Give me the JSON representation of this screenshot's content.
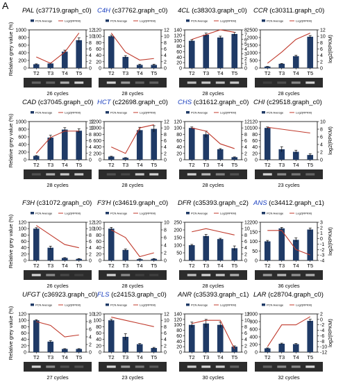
{
  "figure": {
    "panel_letter": "A",
    "y_left_label": "Relative grey value (%)",
    "y_right_label": "log2(RPKM)",
    "legend_bar": "PCN Average",
    "legend_line": "Log2(RPKM)",
    "colors": {
      "bar": "#1f3a66",
      "line": "#c0392b",
      "blue_title": "#1a3fbf",
      "gel_bg": "#2c2c2c",
      "band": "#e8e8e8"
    }
  },
  "chart_data": [
    {
      "type": "bar",
      "gene": "PAL",
      "id": "(c37719.graph_c0)",
      "gene_color": "black",
      "categories": [
        "T2",
        "T3",
        "T4",
        "T5"
      ],
      "left_ticks": [
        0,
        200,
        400,
        600,
        800,
        1000
      ],
      "ylim": [
        0,
        1000
      ],
      "right_ticks": [
        0,
        2,
        4,
        6,
        8,
        10,
        12
      ],
      "ylim_right": [
        0,
        12
      ],
      "series": [
        {
          "name": "PCN Average",
          "values": [
            100,
            120,
            430,
            730
          ],
          "errors": [
            10,
            15,
            40,
            60
          ]
        },
        {
          "name": "Log2(RPKM)",
          "values": [
            3.5,
            1.5,
            5,
            11
          ]
        }
      ],
      "gel_bands": [
        0.3,
        0.3,
        0.7,
        0.9
      ],
      "cycles": "26 cycles"
    },
    {
      "type": "bar",
      "gene": "C4H",
      "id": "(c37762.graph_c0)",
      "gene_color": "blue",
      "categories": [
        "T2",
        "T3",
        "T4",
        "T5"
      ],
      "left_ticks": [
        0,
        20,
        40,
        60,
        80,
        100,
        120
      ],
      "ylim": [
        0,
        120
      ],
      "right_ticks": [
        0,
        2,
        4,
        6,
        8,
        10,
        12
      ],
      "ylim_right": [
        0,
        12
      ],
      "series": [
        {
          "name": "PCN Average",
          "values": [
            100,
            35,
            10,
            10
          ],
          "errors": [
            3,
            4,
            2,
            2
          ]
        },
        {
          "name": "Log2(RPKM)",
          "values": [
            11,
            5,
            2.5,
            3
          ]
        }
      ],
      "gel_bands": [
        0.9,
        0.6,
        0.3,
        0.3
      ],
      "cycles": "28 cycles"
    },
    {
      "type": "bar",
      "gene": "4CL",
      "id": "(c38303.graph_c0)",
      "gene_color": "black",
      "categories": [
        "T2",
        "T3",
        "T4",
        "T5"
      ],
      "left_ticks": [
        0,
        20,
        40,
        60,
        80,
        100,
        120,
        140
      ],
      "ylim": [
        0,
        140
      ],
      "right_ticks": [
        0,
        1,
        2,
        3,
        4,
        5,
        6,
        7,
        8
      ],
      "ylim_right": [
        0,
        8
      ],
      "series": [
        {
          "name": "PCN Average",
          "values": [
            100,
            122,
            112,
            125
          ],
          "errors": [
            4,
            6,
            5,
            6
          ]
        },
        {
          "name": "Log2(RPKM)",
          "values": [
            6,
            7,
            8,
            7.5
          ]
        }
      ],
      "gel_bands": [
        0.8,
        0.85,
        0.8,
        0.85
      ],
      "cycles": "28 cycles"
    },
    {
      "type": "bar",
      "gene": "CCR",
      "id": "(c30311.graph_c0)",
      "gene_color": "black",
      "categories": [
        "T2",
        "T3",
        "T4",
        "T5"
      ],
      "left_ticks": [
        0,
        500,
        1000,
        1500,
        2000,
        2500
      ],
      "ylim": [
        0,
        2500
      ],
      "right_ticks": [
        0,
        2,
        4,
        6,
        8,
        10,
        12
      ],
      "ylim_right": [
        0,
        12
      ],
      "series": [
        {
          "name": "PCN Average",
          "values": [
            100,
            280,
            780,
            2050
          ],
          "errors": [
            10,
            20,
            60,
            80
          ]
        },
        {
          "name": "Log2(RPKM)",
          "values": [
            1.5,
            5,
            9,
            11
          ]
        }
      ],
      "gel_bands": [
        0.1,
        0.2,
        0.5,
        0.9
      ],
      "cycles": "28 cycles"
    },
    {
      "type": "bar",
      "gene": "CAD",
      "id": "(c37045.graph_c0)",
      "gene_color": "black",
      "categories": [
        "T2",
        "T3",
        "T4",
        "T5"
      ],
      "left_ticks": [
        0,
        200,
        400,
        600,
        800,
        1000
      ],
      "ylim": [
        0,
        1000
      ],
      "right_ticks": [
        0,
        2,
        4,
        6,
        8,
        10,
        12
      ],
      "ylim_right": [
        0,
        12
      ],
      "series": [
        {
          "name": "PCN Average",
          "values": [
            100,
            580,
            790,
            760
          ],
          "errors": [
            10,
            60,
            50,
            50
          ]
        },
        {
          "name": "Log2(RPKM)",
          "values": [
            2,
            7,
            9,
            9
          ]
        }
      ],
      "gel_bands": [
        0.2,
        0.7,
        0.85,
        0.85
      ],
      "cycles": "28 cycles"
    },
    {
      "type": "bar",
      "gene": "HCT",
      "id": "(c22698.graph_c0)",
      "gene_color": "blue",
      "categories": [
        "T2",
        "T3",
        "T4",
        "T5"
      ],
      "left_ticks": [
        0,
        200,
        400,
        600,
        800,
        1000,
        1200
      ],
      "ylim": [
        0,
        1200
      ],
      "right_ticks": [
        0,
        2,
        4,
        6,
        8,
        10,
        12
      ],
      "ylim_right": [
        0,
        12
      ],
      "series": [
        {
          "name": "PCN Average",
          "values": [
            100,
            60,
            930,
            970
          ],
          "errors": [
            10,
            8,
            90,
            100
          ]
        },
        {
          "name": "Log2(RPKM)",
          "values": [
            4,
            2,
            10,
            11
          ]
        }
      ],
      "gel_bands": [
        0.2,
        0.15,
        0.85,
        0.9
      ],
      "cycles": "28 cycles"
    },
    {
      "type": "bar",
      "gene": "CHS",
      "id": "(c31612.graph_c0)",
      "gene_color": "blue",
      "categories": [
        "T2",
        "T3",
        "T4",
        "T5"
      ],
      "left_ticks": [
        0,
        20,
        40,
        60,
        80,
        100,
        120
      ],
      "ylim": [
        0,
        120
      ],
      "right_ticks": [
        0,
        2,
        4,
        6,
        8,
        10,
        12
      ],
      "ylim_right": [
        0,
        12
      ],
      "series": [
        {
          "name": "PCN Average",
          "values": [
            100,
            80,
            33,
            8
          ],
          "errors": [
            3,
            10,
            2,
            1
          ]
        },
        {
          "name": "Log2(RPKM)",
          "values": [
            10,
            9,
            5,
            3.5
          ]
        }
      ],
      "gel_bands": [
        0.9,
        0.75,
        0.45,
        0.2
      ],
      "cycles": "28 cycles"
    },
    {
      "type": "bar",
      "gene": "CHI",
      "id": "(c29518.graph_c0)",
      "gene_color": "black",
      "categories": [
        "T2",
        "T3",
        "T4",
        "T5"
      ],
      "left_ticks": [
        0,
        20,
        40,
        60,
        80,
        100,
        120
      ],
      "ylim": [
        0,
        120
      ],
      "right_ticks": [
        0,
        2,
        4,
        6,
        8,
        10
      ],
      "ylim_right": [
        0,
        10
      ],
      "series": [
        {
          "name": "PCN Average",
          "values": [
            100,
            33,
            25,
            15
          ],
          "errors": [
            3,
            8,
            5,
            4
          ]
        },
        {
          "name": "Log2(RPKM)",
          "values": [
            8.5,
            8,
            7.5,
            7
          ]
        }
      ],
      "gel_bands": [
        0.9,
        0.5,
        0.4,
        0.3
      ],
      "cycles": "23 cycles"
    },
    {
      "type": "bar",
      "gene": "F3H",
      "id": "(c31072.graph_c0)",
      "gene_color": "black",
      "categories": [
        "T2",
        "T3",
        "T4",
        "T5"
      ],
      "left_ticks": [
        0,
        20,
        40,
        60,
        80,
        100,
        120
      ],
      "ylim": [
        0,
        120
      ],
      "right_ticks": [
        0,
        2,
        4,
        6,
        8,
        10,
        12
      ],
      "ylim_right": [
        0,
        12
      ],
      "series": [
        {
          "name": "PCN Average",
          "values": [
            100,
            40,
            8,
            5
          ],
          "errors": [
            3,
            5,
            1,
            1
          ]
        },
        {
          "name": "Log2(RPKM)",
          "values": [
            11,
            8,
            5,
            4
          ]
        }
      ],
      "gel_bands": [
        0.9,
        0.5,
        0.15,
        0.1
      ],
      "cycles": "26 cycles"
    },
    {
      "type": "bar",
      "gene": "F3'H",
      "id": "(c34619.graph_c0)",
      "gene_color": "black",
      "categories": [
        "T2",
        "T3",
        "T4",
        "T5"
      ],
      "left_ticks": [
        0,
        20,
        40,
        60,
        80,
        100,
        120
      ],
      "ylim": [
        0,
        120
      ],
      "right_ticks": [
        0,
        2,
        4,
        6,
        8,
        10
      ],
      "ylim_right": [
        0,
        10
      ],
      "series": [
        {
          "name": "PCN Average",
          "values": [
            100,
            33,
            4,
            5
          ],
          "errors": [
            4,
            3,
            1,
            1
          ]
        },
        {
          "name": "Log2(RPKM)",
          "values": [
            8,
            6,
            1,
            2
          ]
        }
      ],
      "gel_bands": [
        0.9,
        0.5,
        0.1,
        0.1
      ],
      "cycles": "28 cycles"
    },
    {
      "type": "bar",
      "gene": "DFR",
      "id": "(c35393.graph_c2)",
      "gene_color": "black",
      "categories": [
        "T2",
        "T3",
        "T4",
        "T5"
      ],
      "left_ticks": [
        0,
        50,
        100,
        150,
        200,
        250
      ],
      "ylim": [
        0,
        250
      ],
      "right_ticks": [
        0,
        2,
        4,
        6,
        8,
        10,
        12
      ],
      "ylim_right": [
        0,
        12
      ],
      "series": [
        {
          "name": "PCN Average",
          "values": [
            100,
            160,
            140,
            80
          ],
          "errors": [
            5,
            10,
            5,
            15
          ]
        },
        {
          "name": "Log2(RPKM)",
          "values": [
            9,
            10,
            9,
            8
          ]
        }
      ],
      "gel_bands": [
        0.8,
        0.9,
        0.85,
        0.7
      ],
      "cycles": "28 cycles"
    },
    {
      "type": "bar",
      "gene": "ANS",
      "id": "(c34412.graph_c1)",
      "gene_color": "blue",
      "categories": [
        "T2",
        "T3",
        "T4",
        "T5"
      ],
      "left_ticks": [
        0,
        50,
        100,
        150,
        200
      ],
      "ylim": [
        0,
        200
      ],
      "right_ticks": [
        -4,
        -3,
        -2,
        -1,
        0,
        1,
        2,
        3
      ],
      "ylim_right": [
        -4,
        3
      ],
      "series": [
        {
          "name": "PCN Average",
          "values": [
            100,
            168,
            108,
            162
          ],
          "errors": [
            5,
            5,
            10,
            8
          ]
        },
        {
          "name": "Log2(RPKM)",
          "values": [
            1.5,
            1.5,
            -2,
            -3
          ]
        }
      ],
      "gel_bands": [
        0.6,
        0.75,
        0.55,
        0.7
      ],
      "cycles": "36 cycles"
    },
    {
      "type": "bar",
      "gene": "UFGT",
      "id": "(c36923.graph_c0)",
      "gene_color": "black",
      "categories": [
        "T2",
        "T3",
        "T4",
        "T5"
      ],
      "left_ticks": [
        0,
        20,
        40,
        60,
        80,
        100,
        120
      ],
      "ylim": [
        0,
        120
      ],
      "right_ticks": [
        0,
        2,
        4,
        6,
        8,
        10
      ],
      "ylim_right": [
        0,
        10
      ],
      "series": [
        {
          "name": "PCN Average",
          "values": [
            100,
            33,
            10,
            10
          ],
          "errors": [
            2,
            3,
            1,
            1
          ]
        },
        {
          "name": "Log2(RPKM)",
          "values": [
            8,
            7,
            4,
            4.5
          ]
        }
      ],
      "gel_bands": [
        0.9,
        0.5,
        0.2,
        0.2
      ],
      "cycles": "27 cycles"
    },
    {
      "type": "bar",
      "gene": "FLS",
      "id": "(c24153.graph_c0)",
      "gene_color": "blue",
      "categories": [
        "T2",
        "T3",
        "T4",
        "T5"
      ],
      "left_ticks": [
        0,
        20,
        40,
        60,
        80,
        100,
        120
      ],
      "ylim": [
        0,
        120
      ],
      "right_ticks": [
        0,
        2,
        4,
        6,
        8,
        10,
        12
      ],
      "ylim_right": [
        0,
        12
      ],
      "series": [
        {
          "name": "PCN Average",
          "values": [
            100,
            48,
            25,
            13
          ],
          "errors": [
            3,
            10,
            2,
            2
          ]
        },
        {
          "name": "Log2(RPKM)",
          "values": [
            11,
            10,
            9,
            8
          ]
        }
      ],
      "gel_bands": [
        0.9,
        0.6,
        0.4,
        0.25
      ],
      "cycles": "23 cycles"
    },
    {
      "type": "bar",
      "gene": "ANR",
      "id": "(c35393.graph_c1)",
      "gene_color": "black",
      "categories": [
        "T2",
        "T3",
        "T4",
        "T5"
      ],
      "left_ticks": [
        0,
        20,
        40,
        60,
        80,
        100,
        120,
        140
      ],
      "ylim": [
        0,
        140
      ],
      "right_ticks": [
        0,
        2,
        4,
        6,
        8,
        10,
        12
      ],
      "ylim_right": [
        0,
        12
      ],
      "series": [
        {
          "name": "PCN Average",
          "values": [
            100,
            105,
            100,
            20
          ],
          "errors": [
            10,
            15,
            10,
            3
          ]
        },
        {
          "name": "Log2(RPKM)",
          "values": [
            9,
            10,
            10,
            1
          ]
        }
      ],
      "gel_bands": [
        0.85,
        0.9,
        0.85,
        0.3
      ],
      "cycles": "30 cycles"
    },
    {
      "type": "bar",
      "gene": "LAR",
      "id": "(c28704.graph_c0)",
      "gene_color": "black",
      "categories": [
        "T2",
        "T3",
        "T4",
        "T5"
      ],
      "left_ticks": [
        0,
        200,
        400,
        600,
        800,
        1000
      ],
      "ylim": [
        0,
        1000
      ],
      "right_ticks": [
        -12,
        -10,
        -8,
        -6,
        -4,
        -2,
        0,
        2
      ],
      "ylim_right": [
        -12,
        2
      ],
      "series": [
        {
          "name": "PCN Average",
          "values": [
            100,
            220,
            210,
            820
          ],
          "errors": [
            10,
            15,
            15,
            40
          ]
        },
        {
          "name": "Log2(RPKM)",
          "values": [
            -10,
            -2,
            -2,
            1
          ]
        }
      ],
      "gel_bands": [
        0.3,
        0.5,
        0.5,
        0.9
      ],
      "cycles": "32 cycles"
    }
  ]
}
